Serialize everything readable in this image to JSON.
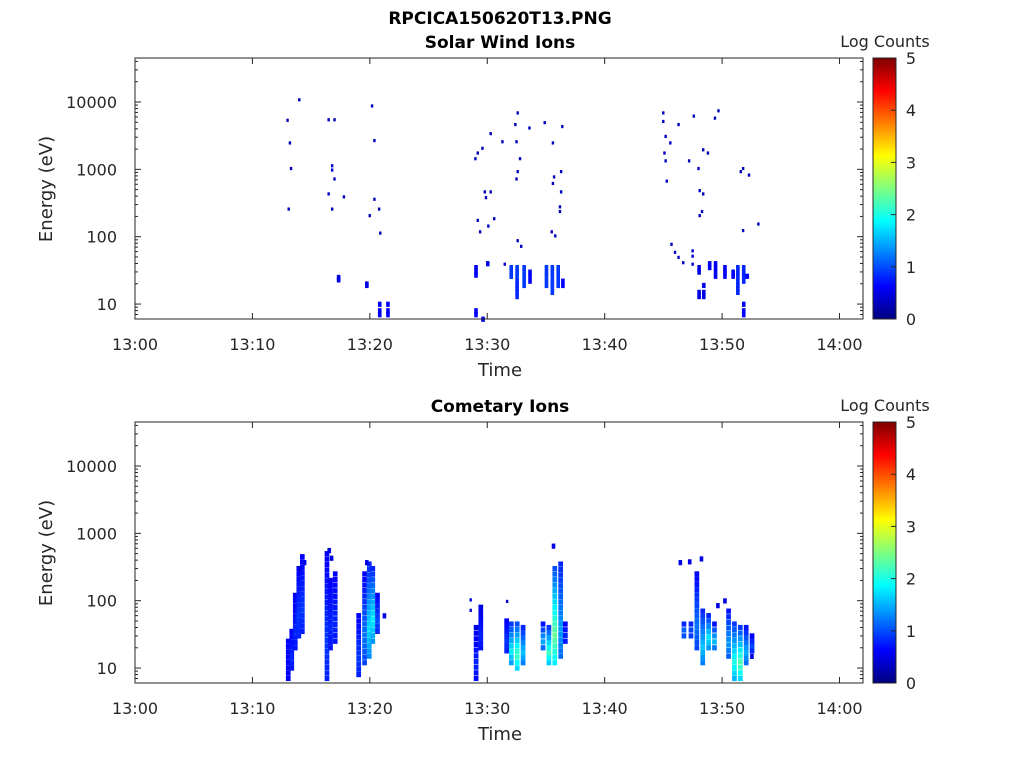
{
  "figure_title": "RPCICA150620T13.PNG",
  "colors": {
    "colormap": [
      "#00007f",
      "#0000ff",
      "#007fff",
      "#00ffff",
      "#7fff7f",
      "#ffff00",
      "#ff7f00",
      "#ff0000",
      "#7f0000"
    ],
    "axis": "#262626"
  },
  "chart_data": [
    {
      "type": "heatmap",
      "title": "Solar Wind Ions",
      "xlabel": "Time",
      "ylabel": "Energy (eV)",
      "y_scale": "log",
      "colorbar_label": "Log Counts",
      "colorbar_ticks": [
        "0",
        "1",
        "2",
        "3",
        "4",
        "5"
      ],
      "clim": [
        0,
        5
      ],
      "x_tick_labels": [
        "13:00",
        "13:10",
        "13:20",
        "13:30",
        "13:40",
        "13:50",
        "14:00"
      ],
      "y_tick_labels": [
        "10",
        "100",
        "1000",
        "10000"
      ],
      "xlim": [
        "13:00",
        "14:02"
      ],
      "ylim": [
        6,
        45000
      ],
      "points": [
        [
          "13:13",
          5200,
          0.3
        ],
        [
          "13:13.2",
          2400,
          0.3
        ],
        [
          "13:13.3",
          1000,
          0.3
        ],
        [
          "13:13.1",
          250,
          0.3
        ],
        [
          "13:14",
          10500,
          0.3
        ],
        [
          "13:16.5",
          5300,
          0.3
        ],
        [
          "13:17",
          5300,
          0.3
        ],
        [
          "13:16.8",
          1100,
          0.4
        ],
        [
          "13:16.8",
          950,
          0.4
        ],
        [
          "13:17",
          700,
          0.3
        ],
        [
          "13:16.5",
          420,
          0.3
        ],
        [
          "13:16.8",
          250,
          0.3
        ],
        [
          "13:17.8",
          380,
          0.3
        ],
        [
          "13:20.2",
          8500,
          0.3
        ],
        [
          "13:20.4",
          2600,
          0.3
        ],
        [
          "13:20.4",
          350,
          0.3
        ],
        [
          "13:20.8",
          250,
          0.3
        ],
        [
          "13:20",
          200,
          0.3
        ],
        [
          "13:20.9",
          110,
          0.3
        ],
        [
          "13:17.3",
          25,
          0.5
        ],
        [
          "13:17.3",
          23,
          0.5
        ],
        [
          "13:19.7",
          20,
          0.5
        ],
        [
          "13:19.7",
          19,
          0.5
        ],
        [
          "13:20.8",
          10,
          0.6
        ],
        [
          "13:20.8",
          8,
          0.6
        ],
        [
          "13:20.8",
          7,
          0.6
        ],
        [
          "13:21.5",
          10,
          0.6
        ],
        [
          "13:21.5",
          8,
          0.6
        ],
        [
          "13:21.5",
          7,
          0.6
        ],
        [
          "13:29",
          1400,
          0.3
        ],
        [
          "13:29.2",
          1700,
          0.3
        ],
        [
          "13:29.6",
          2000,
          0.3
        ],
        [
          "13:30.3",
          3300,
          0.3
        ],
        [
          "13:31.3",
          2500,
          0.3
        ],
        [
          "13:29.8",
          450,
          0.3
        ],
        [
          "13:30.3",
          450,
          0.3
        ],
        [
          "13:29.9",
          370,
          0.3
        ],
        [
          "13:29.2",
          170,
          0.3
        ],
        [
          "13:29.4",
          115,
          0.3
        ],
        [
          "13:30.1",
          140,
          0.3
        ],
        [
          "13:30.6",
          180,
          0.3
        ],
        [
          "13:32.6",
          6700,
          0.3
        ],
        [
          "13:32.4",
          4500,
          0.3
        ],
        [
          "13:33.6",
          4000,
          0.3
        ],
        [
          "13:32.5",
          2500,
          0.3
        ],
        [
          "13:32.8",
          1400,
          0.3
        ],
        [
          "13:32.6",
          900,
          0.3
        ],
        [
          "13:32.5",
          700,
          0.3
        ],
        [
          "13:32.6",
          85,
          0.3
        ],
        [
          "13:32.9",
          70,
          0.3
        ],
        [
          "13:34.9",
          4800,
          0.3
        ],
        [
          "13:36.4",
          4200,
          0.3
        ],
        [
          "13:35.6",
          2400,
          0.3
        ],
        [
          "13:36.3",
          900,
          0.3
        ],
        [
          "13:35.7",
          750,
          0.3
        ],
        [
          "13:35.6",
          600,
          0.3
        ],
        [
          "13:36.3",
          450,
          0.3
        ],
        [
          "13:36.2",
          270,
          0.3
        ],
        [
          "13:36.2",
          230,
          0.3
        ],
        [
          "13:35.5",
          115,
          0.3
        ],
        [
          "13:35.8",
          100,
          0.3
        ],
        [
          "13:29",
          35,
          0.6
        ],
        [
          "13:29",
          30,
          0.6
        ],
        [
          "13:29",
          27,
          0.6
        ],
        [
          "13:30",
          40,
          0.5
        ],
        [
          "13:29",
          8,
          0.6
        ],
        [
          "13:29",
          7,
          0.6
        ],
        [
          "13:29.6",
          6,
          0.5
        ],
        [
          "13:31.5",
          38,
          0.4
        ],
        [
          "13:32",
          35,
          0.9
        ],
        [
          "13:32",
          30,
          0.9
        ],
        [
          "13:32",
          26,
          0.9
        ],
        [
          "13:32.5",
          35,
          0.9
        ],
        [
          "13:32.5",
          30,
          0.9
        ],
        [
          "13:32.5",
          26,
          0.9
        ],
        [
          "13:32.5",
          22,
          0.8
        ],
        [
          "13:32.5",
          19,
          0.8
        ],
        [
          "13:32.5",
          17,
          0.8
        ],
        [
          "13:32.5",
          15,
          0.8
        ],
        [
          "13:32.5",
          13,
          0.8
        ],
        [
          "13:33.1",
          35,
          0.9
        ],
        [
          "13:33.1",
          30,
          0.9
        ],
        [
          "13:33.1",
          26,
          0.9
        ],
        [
          "13:33.1",
          22,
          0.9
        ],
        [
          "13:33.1",
          19,
          0.9
        ],
        [
          "13:33.6",
          30,
          0.6
        ],
        [
          "13:33.6",
          26,
          0.6
        ],
        [
          "13:33.6",
          22,
          0.6
        ],
        [
          "13:35",
          35,
          0.9
        ],
        [
          "13:35",
          30,
          0.9
        ],
        [
          "13:35",
          26,
          0.9
        ],
        [
          "13:35",
          22,
          0.9
        ],
        [
          "13:35",
          19,
          0.9
        ],
        [
          "13:35.5",
          35,
          0.9
        ],
        [
          "13:35.5",
          30,
          0.9
        ],
        [
          "13:35.5",
          26,
          0.9
        ],
        [
          "13:35.5",
          22,
          0.9
        ],
        [
          "13:35.5",
          19,
          0.9
        ],
        [
          "13:35.5",
          17,
          0.9
        ],
        [
          "13:35.5",
          15,
          0.9
        ],
        [
          "13:36",
          35,
          0.9
        ],
        [
          "13:36",
          30,
          0.9
        ],
        [
          "13:36",
          26,
          0.9
        ],
        [
          "13:36",
          22,
          0.9
        ],
        [
          "13:36",
          19,
          0.9
        ],
        [
          "13:36.4",
          22,
          0.6
        ],
        [
          "13:36.4",
          19,
          0.6
        ],
        [
          "13:45",
          6700,
          0.3
        ],
        [
          "13:45",
          5000,
          0.3
        ],
        [
          "13:46.3",
          4500,
          0.3
        ],
        [
          "13:47.6",
          6000,
          0.3
        ],
        [
          "13:49.4",
          5600,
          0.3
        ],
        [
          "13:49.7",
          7200,
          0.3
        ],
        [
          "13:45.2",
          3000,
          0.3
        ],
        [
          "13:45.6",
          2400,
          0.3
        ],
        [
          "13:45.1",
          1700,
          0.3
        ],
        [
          "13:45.2",
          1300,
          0.3
        ],
        [
          "13:48.4",
          1900,
          0.3
        ],
        [
          "13:48.8",
          1700,
          0.3
        ],
        [
          "13:47.2",
          1300,
          0.3
        ],
        [
          "13:48",
          1000,
          0.3
        ],
        [
          "13:45.3",
          650,
          0.3
        ],
        [
          "13:48.1",
          470,
          0.3
        ],
        [
          "13:48.4",
          420,
          0.3
        ],
        [
          "13:48.3",
          230,
          0.3
        ],
        [
          "13:48.1",
          200,
          0.3
        ],
        [
          "13:51.6",
          900,
          0.3
        ],
        [
          "13:52.3",
          800,
          0.3
        ],
        [
          "13:51.8",
          1000,
          0.3
        ],
        [
          "13:51.8",
          120,
          0.3
        ],
        [
          "13:53.1",
          150,
          0.3
        ],
        [
          "13:45.7",
          75,
          0.3
        ],
        [
          "13:46",
          57,
          0.4
        ],
        [
          "13:46.3",
          48,
          0.4
        ],
        [
          "13:46.7",
          40,
          0.4
        ],
        [
          "13:47.5",
          60,
          0.4
        ],
        [
          "13:47.5",
          50,
          0.4
        ],
        [
          "13:47.5",
          38,
          0.4
        ],
        [
          "13:48",
          35,
          0.5
        ],
        [
          "13:48",
          30,
          0.5
        ],
        [
          "13:48",
          15,
          0.5
        ],
        [
          "13:48",
          13,
          0.5
        ],
        [
          "13:48.4",
          19,
          0.5
        ],
        [
          "13:48.4",
          15,
          0.5
        ],
        [
          "13:48.4",
          13,
          0.5
        ],
        [
          "13:48.9",
          40,
          0.6
        ],
        [
          "13:48.9",
          35,
          0.6
        ],
        [
          "13:49.4",
          40,
          0.6
        ],
        [
          "13:49.4",
          35,
          0.6
        ],
        [
          "13:49.4",
          30,
          0.6
        ],
        [
          "13:49.4",
          26,
          0.6
        ],
        [
          "13:50.2",
          35,
          0.6
        ],
        [
          "13:50.2",
          30,
          0.6
        ],
        [
          "13:50.2",
          26,
          0.6
        ],
        [
          "13:50.9",
          30,
          0.6
        ],
        [
          "13:50.9",
          26,
          0.6
        ],
        [
          "13:51.3",
          35,
          0.8
        ],
        [
          "13:51.3",
          30,
          0.8
        ],
        [
          "13:51.3",
          26,
          0.8
        ],
        [
          "13:51.3",
          22,
          0.8
        ],
        [
          "13:51.3",
          19,
          0.8
        ],
        [
          "13:51.3",
          17,
          0.8
        ],
        [
          "13:51.3",
          15,
          0.8
        ],
        [
          "13:51.8",
          35,
          0.8
        ],
        [
          "13:51.8",
          30,
          0.8
        ],
        [
          "13:51.8",
          26,
          0.8
        ],
        [
          "13:51.8",
          22,
          0.8
        ],
        [
          "13:52.1",
          26,
          0.6
        ],
        [
          "13:51.8",
          10,
          0.6
        ],
        [
          "13:51.8",
          8,
          0.6
        ],
        [
          "13:51.8",
          7,
          0.6
        ]
      ]
    },
    {
      "type": "heatmap",
      "title": "Cometary Ions",
      "xlabel": "Time",
      "ylabel": "Energy (eV)",
      "y_scale": "log",
      "colorbar_label": "Log Counts",
      "colorbar_ticks": [
        "0",
        "1",
        "2",
        "3",
        "4",
        "5"
      ],
      "clim": [
        0,
        5
      ],
      "x_tick_labels": [
        "13:00",
        "13:10",
        "13:20",
        "13:30",
        "13:40",
        "13:50",
        "14:00"
      ],
      "y_tick_labels": [
        "10",
        "100",
        "1000",
        "10000"
      ],
      "xlim": [
        "13:00",
        "14:02"
      ],
      "ylim": [
        6,
        45000
      ],
      "columns": [
        [
          "13:13",
          7,
          25,
          0.6,
          0.6
        ],
        [
          "13:13.3",
          10,
          35,
          0.6,
          0.8
        ],
        [
          "13:13.6",
          20,
          120,
          0.6,
          0.8
        ],
        [
          "13:13.9",
          30,
          300,
          0.6,
          0.9
        ],
        [
          "13:14.2",
          35,
          450,
          0.6,
          0.9
        ],
        [
          "13:16.3",
          7,
          500,
          0.6,
          0.9
        ],
        [
          "13:16.6",
          20,
          200,
          0.6,
          0.8
        ],
        [
          "13:17",
          25,
          250,
          0.6,
          0.8
        ],
        [
          "13:19",
          8,
          60,
          0.6,
          0.9
        ],
        [
          "13:19.5",
          12,
          250,
          0.6,
          1.2
        ],
        [
          "13:19.9",
          15,
          350,
          0.8,
          1.7
        ],
        [
          "13:20.2",
          25,
          300,
          0.8,
          1.8
        ],
        [
          "13:20.6",
          35,
          120,
          0.6,
          1
        ],
        [
          "13:29",
          7,
          40,
          0.5,
          0.8
        ],
        [
          "13:29.4",
          20,
          80,
          0.5,
          0.8
        ],
        [
          "13:31.6",
          18,
          50,
          0.6,
          0.9
        ],
        [
          "13:32",
          12,
          45,
          0.9,
          1.8
        ],
        [
          "13:32.5",
          10,
          45,
          1,
          2.2
        ],
        [
          "13:33",
          12,
          40,
          0.8,
          1.6
        ],
        [
          "13:34.7",
          20,
          45,
          0.7,
          1.5
        ],
        [
          "13:35.2",
          12,
          40,
          0.9,
          2.2
        ],
        [
          "13:35.7",
          12,
          300,
          1,
          2.4
        ],
        [
          "13:36.2",
          15,
          350,
          0.8,
          1.4
        ],
        [
          "13:36.6",
          25,
          45,
          0.6,
          0.8
        ],
        [
          "13:46.7",
          30,
          45,
          0.8,
          1.2
        ],
        [
          "13:47.3",
          30,
          45,
          0.8,
          1
        ],
        [
          "13:47.8",
          20,
          250,
          0.6,
          1.2
        ],
        [
          "13:48.3",
          12,
          70,
          0.8,
          1.6
        ],
        [
          "13:48.8",
          20,
          60,
          0.8,
          1.8
        ],
        [
          "13:49.3",
          20,
          45,
          0.7,
          1.6
        ],
        [
          "13:50.5",
          15,
          70,
          0.7,
          1.4
        ],
        [
          "13:51",
          7,
          45,
          0.9,
          2
        ],
        [
          "13:51.5",
          7,
          40,
          0.9,
          2.3
        ],
        [
          "13:52",
          12,
          40,
          0.7,
          1.5
        ],
        [
          "13:52.5",
          18,
          30,
          0.6,
          1
        ]
      ],
      "points": [
        [
          "13:14",
          300,
          0.5
        ],
        [
          "13:14.4",
          370,
          0.5
        ],
        [
          "13:16.5",
          560,
          0.5
        ],
        [
          "13:16.7",
          430,
          0.5
        ],
        [
          "13:19.7",
          370,
          0.5
        ],
        [
          "13:21.2",
          60,
          0.5
        ],
        [
          "13:28.6",
          70,
          0.4
        ],
        [
          "13:28.6",
          100,
          0.4
        ],
        [
          "13:29.4",
          60,
          0.4
        ],
        [
          "13:31.7",
          95,
          0.4
        ],
        [
          "13:35.6",
          650,
          0.5
        ],
        [
          "13:46.4",
          370,
          0.5
        ],
        [
          "13:47.2",
          380,
          0.5
        ],
        [
          "13:48.2",
          420,
          0.5
        ],
        [
          "13:49.6",
          85,
          0.5
        ],
        [
          "13:50.2",
          100,
          0.5
        ],
        [
          "13:52.5",
          15,
          0.5
        ]
      ]
    }
  ]
}
